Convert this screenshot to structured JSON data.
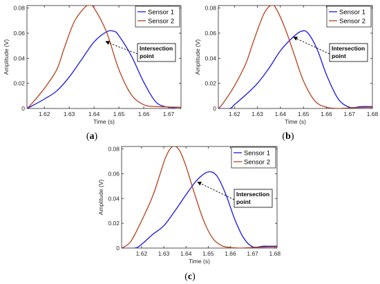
{
  "chart_data": [
    {
      "panel_label": "a",
      "type": "line",
      "xlabel": "Time (s)",
      "ylabel": "Amplitude (V)",
      "xlim": [
        1.613,
        1.675
      ],
      "ylim": [
        0,
        0.082
      ],
      "xticks": [
        "1.62",
        "1.63",
        "1.64",
        "1.65",
        "1.66",
        "1.67"
      ],
      "yticks": [
        "0",
        "0.02",
        "0.04",
        "0.06",
        "0.08"
      ],
      "legend_position": "top-right",
      "annotation": {
        "text_lines": [
          "Intersection",
          "point"
        ],
        "x": 1.6445,
        "y": 0.0535
      },
      "series": [
        {
          "name": "Sensor 1",
          "color": "#1515e0",
          "x": [
            1.613,
            1.615,
            1.62,
            1.625,
            1.63,
            1.635,
            1.64,
            1.645,
            1.648,
            1.65,
            1.655,
            1.66,
            1.665,
            1.67,
            1.675
          ],
          "y": [
            0,
            0.002,
            0.0075,
            0.014,
            0.025,
            0.039,
            0.053,
            0.061,
            0.0615,
            0.058,
            0.042,
            0.021,
            0.005,
            0.001,
            0.001
          ]
        },
        {
          "name": "Sensor 2",
          "color": "#b5411a",
          "x": [
            1.613,
            1.615,
            1.62,
            1.625,
            1.628,
            1.632,
            1.636,
            1.638,
            1.64,
            1.645,
            1.65,
            1.655,
            1.66,
            1.665,
            1.675
          ],
          "y": [
            0,
            0.004,
            0.016,
            0.031,
            0.048,
            0.069,
            0.08,
            0.082,
            0.08,
            0.061,
            0.031,
            0.011,
            0.003,
            0.0015,
            0.001
          ]
        }
      ]
    },
    {
      "panel_label": "b",
      "type": "line",
      "xlabel": "Time (s)",
      "ylabel": "Amplitude (V)",
      "xlim": [
        1.613,
        1.68
      ],
      "ylim": [
        0,
        0.082
      ],
      "xticks": [
        "1.62",
        "1.63",
        "1.64",
        "1.65",
        "1.66",
        "1.67",
        "1.68"
      ],
      "yticks": [
        "0",
        "0.02",
        "0.04",
        "0.06",
        "0.08"
      ],
      "legend_position": "top-right",
      "annotation": {
        "text_lines": [
          "Intersection",
          "point"
        ],
        "x": 1.6455,
        "y": 0.057
      },
      "series": [
        {
          "name": "Sensor 1",
          "color": "#1515e0",
          "x": [
            1.613,
            1.618,
            1.62,
            1.625,
            1.63,
            1.635,
            1.64,
            1.645,
            1.649,
            1.652,
            1.656,
            1.66,
            1.665,
            1.67,
            1.675,
            1.68
          ],
          "y": [
            0,
            0,
            0.003,
            0.011,
            0.02,
            0.032,
            0.046,
            0.056,
            0.0615,
            0.06,
            0.047,
            0.027,
            0.008,
            0.001,
            0.0015,
            0.0015
          ]
        },
        {
          "name": "Sensor 2",
          "color": "#b5411a",
          "x": [
            1.613,
            1.615,
            1.62,
            1.625,
            1.628,
            1.632,
            1.634,
            1.636,
            1.638,
            1.642,
            1.646,
            1.65,
            1.655,
            1.66,
            1.665,
            1.67,
            1.68
          ],
          "y": [
            0,
            0.004,
            0.018,
            0.036,
            0.052,
            0.072,
            0.079,
            0.082,
            0.08,
            0.064,
            0.043,
            0.022,
            0.006,
            0.001,
            0.0,
            0.0005,
            0.001
          ]
        }
      ]
    },
    {
      "panel_label": "c",
      "type": "line",
      "xlabel": "Time (s)",
      "ylabel": "Amplitude (V)",
      "xlim": [
        1.611,
        1.681
      ],
      "ylim": [
        0,
        0.082
      ],
      "xticks": [
        "1.62",
        "1.63",
        "1.64",
        "1.65",
        "1.66",
        "1.67",
        "1.68"
      ],
      "yticks": [
        "0",
        "0.02",
        "0.04",
        "0.06",
        "0.08"
      ],
      "legend_position": "top-right",
      "annotation": {
        "text_lines": [
          "Intersection",
          "point"
        ],
        "x": 1.645,
        "y": 0.0535
      },
      "series": [
        {
          "name": "Sensor 1",
          "color": "#1515e0",
          "x": [
            1.611,
            1.617,
            1.62,
            1.625,
            1.63,
            1.635,
            1.64,
            1.645,
            1.65,
            1.654,
            1.658,
            1.662,
            1.666,
            1.67,
            1.675,
            1.681
          ],
          "y": [
            0,
            0,
            0.003,
            0.011,
            0.018,
            0.03,
            0.043,
            0.055,
            0.0615,
            0.058,
            0.043,
            0.023,
            0.008,
            0.001,
            0.0015,
            0.0015
          ]
        },
        {
          "name": "Sensor 2",
          "color": "#b5411a",
          "x": [
            1.611,
            1.615,
            1.62,
            1.625,
            1.628,
            1.631,
            1.634,
            1.637,
            1.64,
            1.644,
            1.648,
            1.652,
            1.656,
            1.66,
            1.665,
            1.67,
            1.681
          ],
          "y": [
            0,
            0.005,
            0.022,
            0.042,
            0.058,
            0.074,
            0.082,
            0.079,
            0.066,
            0.043,
            0.022,
            0.008,
            0.002,
            0.0005,
            0.0,
            0.0005,
            0.001
          ]
        }
      ]
    }
  ]
}
